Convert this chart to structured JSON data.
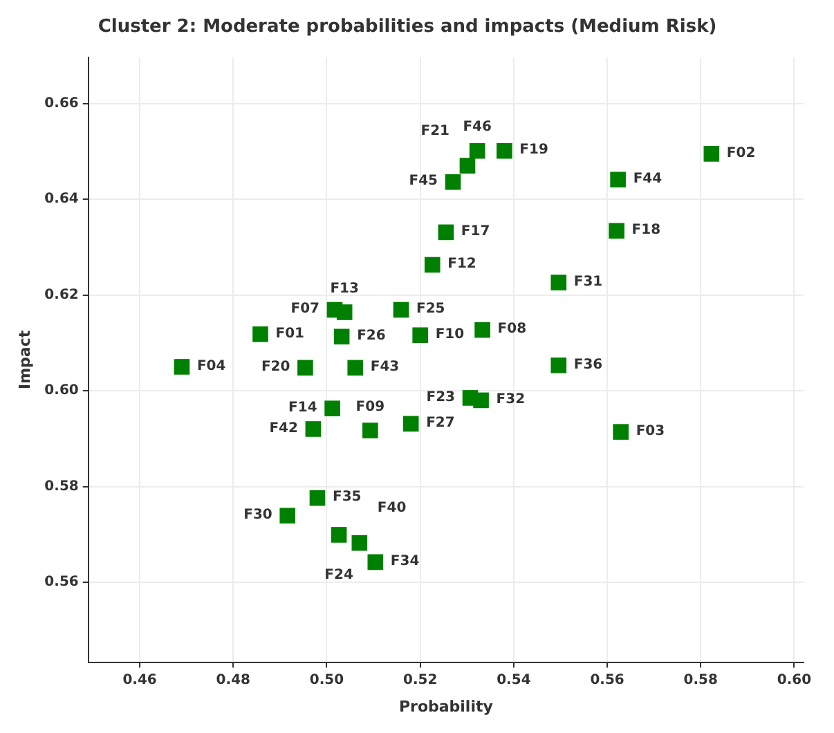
{
  "chart_data": {
    "type": "scatter",
    "title": "Cluster 2: Moderate probabilities and impacts (Medium Risk)",
    "xlabel": "Probability",
    "ylabel": "Impact",
    "x": [
      0.5823,
      0.5623,
      0.562,
      0.5496,
      0.5496,
      0.5629,
      0.5322,
      0.538,
      0.5301,
      0.527,
      0.5255,
      0.5226,
      0.5159,
      0.52,
      0.5333,
      0.5307,
      0.533,
      0.518,
      0.5093,
      0.4971,
      0.5012,
      0.5061,
      0.4954,
      0.5032,
      0.5017,
      0.5038,
      0.4858,
      0.469,
      0.498,
      0.4916,
      0.5026,
      0.507,
      0.5104
    ],
    "series": [
      {
        "color": "#008000",
        "values": [
          0.6495,
          0.6441,
          0.6334,
          0.6226,
          0.6053,
          0.5914,
          0.6501,
          0.6501,
          0.647,
          0.6436,
          0.6331,
          0.6263,
          0.6169,
          0.6116,
          0.6127,
          0.5985,
          0.598,
          0.5931,
          0.5917,
          0.592,
          0.5963,
          0.6048,
          0.6048,
          0.6113,
          0.6169,
          0.6164,
          0.6118,
          0.605,
          0.5776,
          0.5739,
          0.5699,
          0.5682,
          0.5642
        ]
      }
    ],
    "annotations": [
      {
        "text": "F02",
        "x": 0.5823,
        "y": 0.6495
      },
      {
        "text": "F44",
        "x": 0.5623,
        "y": 0.6441
      },
      {
        "text": "F18",
        "x": 0.562,
        "y": 0.6334
      },
      {
        "text": "F31",
        "x": 0.5496,
        "y": 0.6226
      },
      {
        "text": "F36",
        "x": 0.5496,
        "y": 0.6053
      },
      {
        "text": "F03",
        "x": 0.5629,
        "y": 0.5914
      },
      {
        "text": "F46",
        "x": 0.5322,
        "y": 0.6501
      },
      {
        "text": "F19",
        "x": 0.538,
        "y": 0.6501
      },
      {
        "text": "F21",
        "x": 0.5301,
        "y": 0.647
      },
      {
        "text": "F45",
        "x": 0.527,
        "y": 0.6436
      },
      {
        "text": "F17",
        "x": 0.5255,
        "y": 0.6331
      },
      {
        "text": "F12",
        "x": 0.5226,
        "y": 0.6263
      },
      {
        "text": "F25",
        "x": 0.5159,
        "y": 0.6169
      },
      {
        "text": "F10",
        "x": 0.52,
        "y": 0.6116
      },
      {
        "text": "F08",
        "x": 0.5333,
        "y": 0.6127
      },
      {
        "text": "F23",
        "x": 0.5307,
        "y": 0.5985
      },
      {
        "text": "F32",
        "x": 0.533,
        "y": 0.598
      },
      {
        "text": "F27",
        "x": 0.518,
        "y": 0.5931
      },
      {
        "text": "F09",
        "x": 0.5093,
        "y": 0.5917
      },
      {
        "text": "F42",
        "x": 0.4971,
        "y": 0.592
      },
      {
        "text": "F14",
        "x": 0.5012,
        "y": 0.5963
      },
      {
        "text": "F43",
        "x": 0.5061,
        "y": 0.6048
      },
      {
        "text": "F20",
        "x": 0.4954,
        "y": 0.6048
      },
      {
        "text": "F26",
        "x": 0.5032,
        "y": 0.6113
      },
      {
        "text": "F07",
        "x": 0.5017,
        "y": 0.6169
      },
      {
        "text": "F13",
        "x": 0.5038,
        "y": 0.6164
      },
      {
        "text": "F01",
        "x": 0.4858,
        "y": 0.6118
      },
      {
        "text": "F04",
        "x": 0.469,
        "y": 0.605
      },
      {
        "text": "F35",
        "x": 0.498,
        "y": 0.5776
      },
      {
        "text": "F30",
        "x": 0.4916,
        "y": 0.5739
      },
      {
        "text": "F24",
        "x": 0.5026,
        "y": 0.5699
      },
      {
        "text": "F40",
        "x": 0.507,
        "y": 0.5682
      },
      {
        "text": "F34",
        "x": 0.5104,
        "y": 0.5642
      }
    ],
    "xlim": [
      0.449,
      0.602
    ],
    "xticks": [
      {
        "value": 0.46,
        "label": "0.46"
      },
      {
        "value": 0.48,
        "label": "0.48"
      },
      {
        "value": 0.5,
        "label": "0.50"
      },
      {
        "value": 0.52,
        "label": "0.52"
      },
      {
        "value": 0.54,
        "label": "0.54"
      },
      {
        "value": 0.56,
        "label": "0.56"
      },
      {
        "value": 0.58,
        "label": "0.58"
      },
      {
        "value": 0.6,
        "label": "0.60"
      }
    ],
    "ylim": [
      0.5433,
      0.6696
    ],
    "yticks": [
      {
        "value": 0.56,
        "label": "0.56"
      },
      {
        "value": 0.58,
        "label": "0.58"
      },
      {
        "value": 0.6,
        "label": "0.60"
      },
      {
        "value": 0.62,
        "label": "0.62"
      },
      {
        "value": 0.64,
        "label": "0.64"
      },
      {
        "value": 0.66,
        "label": "0.66"
      }
    ],
    "grid": true,
    "marker": "square",
    "legend": false
  }
}
